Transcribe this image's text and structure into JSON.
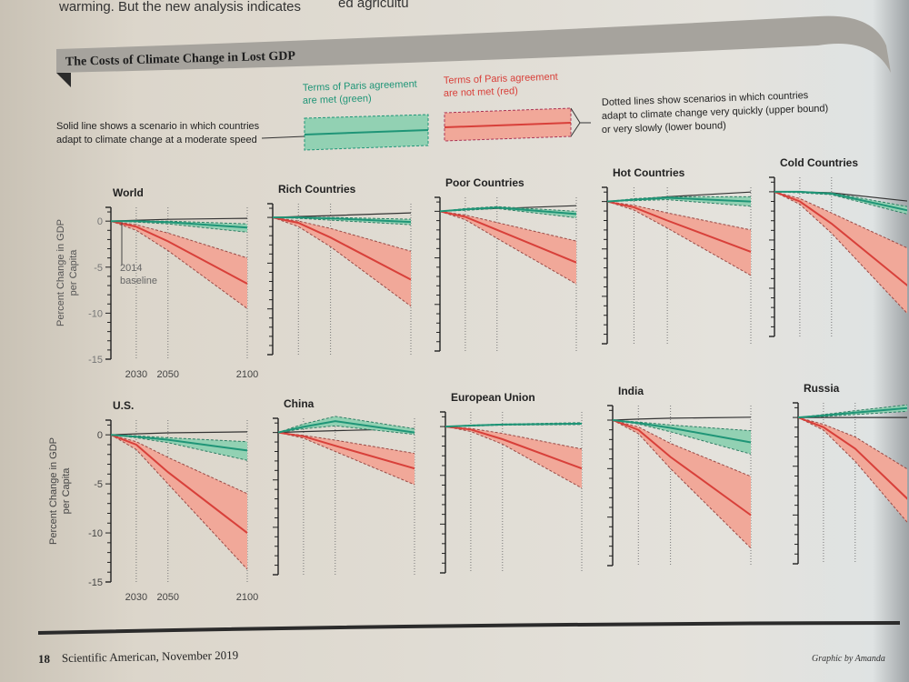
{
  "page": {
    "body_text_left": "warming. But the new analysis indicates",
    "body_text_right": "ed agricultu",
    "footer_page": "18",
    "footer_pub": "Scientific American, November 2019",
    "footer_credit": "Graphic by Amanda"
  },
  "colors": {
    "green_fill": "#92d1b3",
    "green_line": "#1f9577",
    "red_fill": "#f1a899",
    "red_line": "#d8403a",
    "baseline": "#333333"
  },
  "legend": {
    "solid_line_note_1": "Solid line shows a scenario in which countries",
    "solid_line_note_2": "adapt to climate change at a moderate speed",
    "green_label_1": "Terms of Paris agreement",
    "green_label_2": "are met (green)",
    "red_label_1": "Terms of Paris agreement",
    "red_label_2": "are not met (red)",
    "dotted_note_1": "Dotted lines show scenarios in which countries",
    "dotted_note_2": "adapt to climate change very quickly (upper bound)",
    "dotted_note_3": "or very slowly (lower bound)"
  },
  "chart_data": {
    "type": "area",
    "title": "The Costs of Climate Change in Lost GDP",
    "ylabel_1": "Percent Change in GDP",
    "ylabel_2": "per Capita",
    "x": [
      2014,
      2030,
      2050,
      2100
    ],
    "xticks": [
      "2030",
      "2050",
      "2100"
    ],
    "yticks": [
      "0",
      "-5",
      "-10",
      "-15"
    ],
    "ylim": [
      -15,
      1.5
    ],
    "annotation_1": "2014",
    "annotation_2": "baseline",
    "panels": [
      {
        "name": "World",
        "baseline": [
          0,
          0.1,
          0.2,
          0.3
        ],
        "green": {
          "mid": [
            0,
            0,
            -0.1,
            -0.7
          ],
          "hi": [
            0,
            0,
            0,
            -0.3
          ],
          "lo": [
            0,
            -0.1,
            -0.3,
            -1.2
          ]
        },
        "red": {
          "mid": [
            0,
            -0.6,
            -2.2,
            -6.8
          ],
          "hi": [
            0,
            -0.4,
            -1.3,
            -4
          ],
          "lo": [
            0,
            -1,
            -3.2,
            -9.5
          ]
        }
      },
      {
        "name": "Rich Countries",
        "baseline": [
          0,
          0.1,
          0.2,
          0.5
        ],
        "green": {
          "mid": [
            0,
            0,
            -0.1,
            -0.5
          ],
          "hi": [
            0,
            0,
            0,
            -0.2
          ],
          "lo": [
            0,
            -0.1,
            -0.3,
            -0.8
          ]
        },
        "red": {
          "mid": [
            0,
            -0.6,
            -2.2,
            -6.8
          ],
          "hi": [
            0,
            -0.4,
            -1.2,
            -3.7
          ],
          "lo": [
            0,
            -1,
            -3.2,
            -9.7
          ]
        }
      },
      {
        "name": "Poor Countries",
        "baseline": [
          0,
          0.2,
          0.3,
          0.6
        ],
        "green": {
          "mid": [
            0,
            0.2,
            0.4,
            -0.3
          ],
          "hi": [
            0,
            0.3,
            0.5,
            0
          ],
          "lo": [
            0,
            0.1,
            0.3,
            -0.7
          ]
        },
        "red": {
          "mid": [
            0,
            -0.6,
            -2,
            -5.5
          ],
          "hi": [
            0,
            -0.4,
            -1.2,
            -3.2
          ],
          "lo": [
            0,
            -0.9,
            -2.9,
            -7.8
          ]
        }
      },
      {
        "name": "Hot Countries",
        "baseline": [
          0,
          0.2,
          0.5,
          1.0
        ],
        "green": {
          "mid": [
            0,
            0.2,
            0.4,
            0
          ],
          "hi": [
            0,
            0.3,
            0.5,
            0.5
          ],
          "lo": [
            0,
            0.1,
            0.2,
            -0.5
          ]
        },
        "red": {
          "mid": [
            0,
            -0.6,
            -2,
            -5.3
          ],
          "hi": [
            0,
            -0.4,
            -1.2,
            -3
          ],
          "lo": [
            0,
            -0.9,
            -2.8,
            -7.8
          ]
        }
      },
      {
        "name": "Cold Countries",
        "baseline": [
          0,
          0,
          -0.1,
          -1
        ],
        "green": {
          "mid": [
            0,
            0,
            -0.2,
            -2
          ],
          "hi": [
            0,
            0,
            -0.1,
            -1.6
          ],
          "lo": [
            0,
            -0.1,
            -0.3,
            -2.4
          ]
        },
        "red": {
          "mid": [
            0,
            -1,
            -3.3,
            -10
          ],
          "hi": [
            0,
            -0.7,
            -2.2,
            -6
          ],
          "lo": [
            0,
            -1.3,
            -4.3,
            -13
          ]
        }
      },
      {
        "name": "U.S.",
        "baseline": [
          0,
          0.1,
          0.2,
          0.3
        ],
        "green": {
          "mid": [
            0,
            -0.2,
            -0.5,
            -1.6
          ],
          "hi": [
            0,
            -0.1,
            -0.3,
            -0.7
          ],
          "lo": [
            0,
            -0.3,
            -0.8,
            -2.6
          ]
        },
        "red": {
          "mid": [
            0,
            -1,
            -3.8,
            -10
          ],
          "hi": [
            0,
            -0.7,
            -2.3,
            -6
          ],
          "lo": [
            0,
            -1.5,
            -5,
            -13.7
          ]
        }
      },
      {
        "name": "China",
        "baseline": [
          0,
          0.1,
          0.2,
          0.4
        ],
        "green": {
          "mid": [
            0,
            0.6,
            1.2,
            0
          ],
          "hi": [
            0,
            0.9,
            1.7,
            0.4
          ],
          "lo": [
            0,
            0.4,
            0.7,
            -0.2
          ]
        },
        "red": {
          "mid": [
            0,
            -0.4,
            -1.4,
            -3.8
          ],
          "hi": [
            0,
            -0.3,
            -0.8,
            -2.2
          ],
          "lo": [
            0,
            -0.6,
            -2,
            -5.5
          ]
        }
      },
      {
        "name": "European Union",
        "baseline": [
          0,
          0.1,
          0.2,
          0.3
        ],
        "green": {
          "mid": [
            0,
            0.1,
            0.2,
            0.3
          ],
          "hi": [
            0,
            0.15,
            0.25,
            0.4
          ],
          "lo": [
            0,
            0.05,
            0.15,
            0.2
          ]
        },
        "red": {
          "mid": [
            0,
            -0.3,
            -1.3,
            -4.3
          ],
          "hi": [
            0,
            -0.2,
            -0.7,
            -2.3
          ],
          "lo": [
            0,
            -0.5,
            -1.8,
            -6.3
          ]
        }
      },
      {
        "name": "India",
        "baseline": [
          0,
          0.1,
          0.2,
          0.3
        ],
        "green": {
          "mid": [
            0,
            -0.3,
            -0.8,
            -2.3
          ],
          "hi": [
            0,
            -0.2,
            -0.5,
            -1.1
          ],
          "lo": [
            0,
            -0.4,
            -1.2,
            -3.5
          ]
        },
        "red": {
          "mid": [
            0,
            -1,
            -3.8,
            -9.8
          ],
          "hi": [
            0,
            -0.7,
            -2.4,
            -5.8
          ],
          "lo": [
            0,
            -1.4,
            -5,
            -13.2
          ]
        }
      },
      {
        "name": "Russia",
        "baseline": [
          0,
          0,
          0,
          0
        ],
        "green": {
          "mid": [
            0,
            0.2,
            0.5,
            1.2
          ],
          "hi": [
            0,
            0.3,
            0.7,
            1.6
          ],
          "lo": [
            0,
            0.1,
            0.3,
            0.8
          ]
        },
        "red": {
          "mid": [
            0,
            -1,
            -3.2,
            -11
          ],
          "hi": [
            0,
            -0.7,
            -2,
            -7
          ],
          "lo": [
            0,
            -1.3,
            -4.5,
            -14
          ]
        }
      }
    ]
  }
}
